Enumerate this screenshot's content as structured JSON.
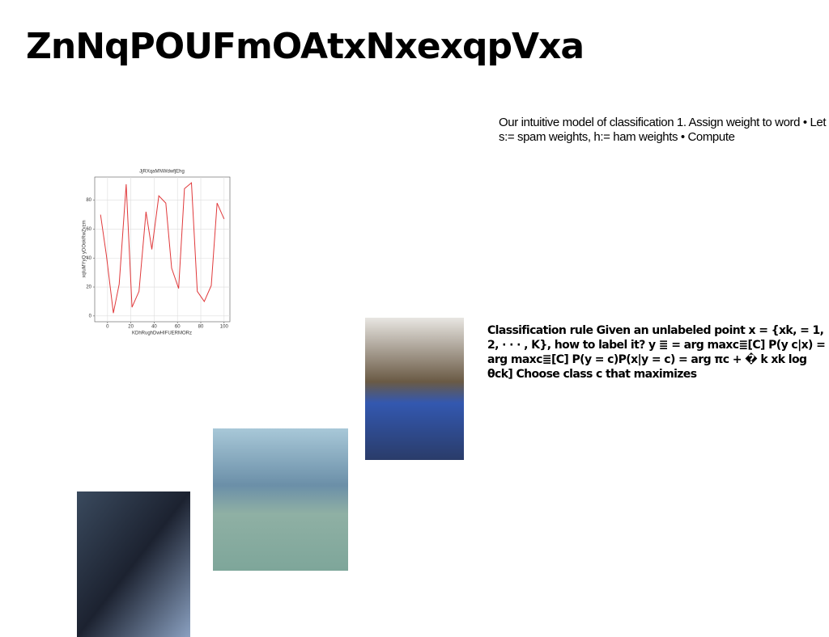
{
  "slide": {
    "title": "ZnNqPOUFmOAtxNxexqpVxa",
    "paragraphs": [
      "Our intuitive model of classification 1. Assign weight to word • Let s:= spam weights, h:= ham weights • Compute",
      "Classification rule Given an unlabeled point x = {xk, = 1, 2, · · · , K}, how to label it? y ≣ = arg maxc≣[C] P(y c|x) = arg maxc≣[C] P(y = c)P(x|y = c) = arg πc + � k xk log θck] Choose class c that maximizes"
    ]
  },
  "chart_data": {
    "type": "line",
    "title": "JjRXqaMNWdwfjEhg",
    "x_label": "KDhRughDwHIFUERMORz",
    "y_label": "xqIuMYyQ yDOokRwZvzm",
    "x": [
      -6,
      -1,
      5,
      10,
      16,
      21,
      27,
      33,
      38,
      44,
      50,
      55,
      61,
      66,
      72,
      77,
      83,
      89,
      94,
      100
    ],
    "values": [
      70,
      42,
      2,
      22,
      91,
      6,
      17,
      72,
      46,
      83,
      78,
      33,
      19,
      88,
      92,
      17,
      10,
      21,
      78,
      67
    ],
    "color": "#e0393b",
    "xlim": [
      -11,
      105
    ],
    "ylim": [
      -4,
      96
    ],
    "xticks": [
      0,
      20,
      40,
      60,
      80,
      100
    ],
    "yticks": [
      0,
      20,
      40,
      60,
      80
    ],
    "grid": true
  }
}
